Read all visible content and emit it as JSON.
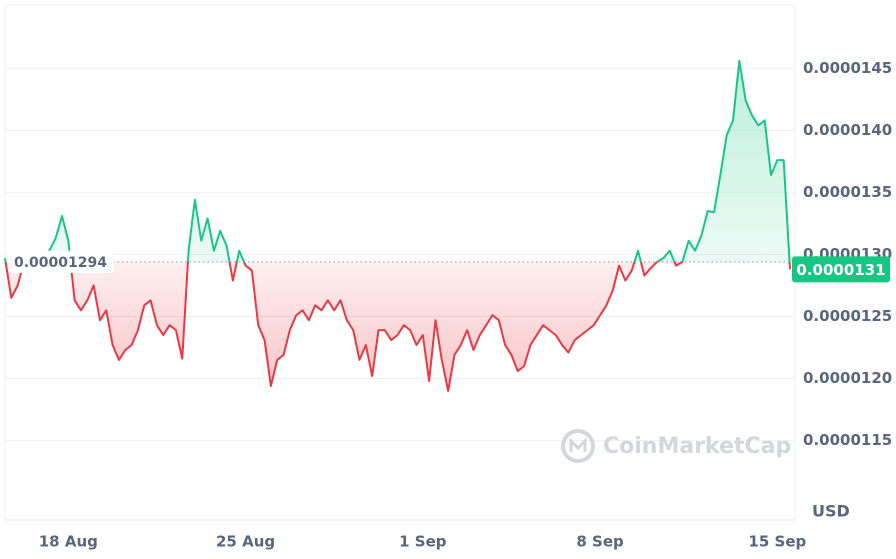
{
  "chart_data": {
    "type": "line",
    "categories": [
      null,
      null,
      null,
      null,
      null,
      null,
      null,
      null,
      null,
      null,
      "18 Aug",
      null,
      null,
      null,
      null,
      null,
      null,
      null,
      null,
      null,
      null,
      null,
      null,
      null,
      null,
      null,
      null,
      null,
      null,
      null,
      null,
      null,
      null,
      null,
      null,
      null,
      null,
      null,
      "25 Aug",
      null,
      null,
      null,
      null,
      null,
      null,
      null,
      null,
      null,
      null,
      null,
      null,
      null,
      null,
      null,
      null,
      null,
      null,
      null,
      null,
      null,
      null,
      null,
      null,
      null,
      null,
      null,
      "1 Sep",
      null,
      null,
      null,
      null,
      null,
      null,
      null,
      null,
      null,
      null,
      null,
      null,
      null,
      null,
      null,
      null,
      null,
      null,
      null,
      null,
      null,
      null,
      null,
      null,
      null,
      null,
      null,
      "8 Sep",
      null,
      null,
      null,
      null,
      null,
      null,
      null,
      null,
      null,
      null,
      null,
      null,
      null,
      null,
      null,
      null,
      null,
      null,
      null,
      null,
      null,
      null,
      null,
      null,
      null,
      null,
      null,
      "15 Sep",
      null,
      null
    ],
    "values": [
      1.297e-05,
      1.265e-05,
      1.275e-05,
      1.294e-05,
      1.294e-05,
      1.293e-05,
      1.294e-05,
      1.303e-05,
      1.313e-05,
      1.331e-05,
      1.311e-05,
      1.263e-05,
      1.255e-05,
      1.263e-05,
      1.275e-05,
      1.247e-05,
      1.255e-05,
      1.227e-05,
      1.215e-05,
      1.223e-05,
      1.227e-05,
      1.239e-05,
      1.259e-05,
      1.263e-05,
      1.243e-05,
      1.235e-05,
      1.243e-05,
      1.239e-05,
      1.216e-05,
      1.303e-05,
      1.344e-05,
      1.311e-05,
      1.329e-05,
      1.303e-05,
      1.319e-05,
      1.307e-05,
      1.279e-05,
      1.303e-05,
      1.291e-05,
      1.287e-05,
      1.243e-05,
      1.231e-05,
      1.194e-05,
      1.215e-05,
      1.219e-05,
      1.239e-05,
      1.251e-05,
      1.255e-05,
      1.247e-05,
      1.259e-05,
      1.255e-05,
      1.263e-05,
      1.255e-05,
      1.263e-05,
      1.247e-05,
      1.239e-05,
      1.215e-05,
      1.227e-05,
      1.202e-05,
      1.239e-05,
      1.239e-05,
      1.231e-05,
      1.235e-05,
      1.243e-05,
      1.239e-05,
      1.227e-05,
      1.235e-05,
      1.198e-05,
      1.247e-05,
      1.215e-05,
      1.19e-05,
      1.219e-05,
      1.227e-05,
      1.239e-05,
      1.223e-05,
      1.235e-05,
      1.243e-05,
      1.251e-05,
      1.247e-05,
      1.227e-05,
      1.219e-05,
      1.206e-05,
      1.21e-05,
      1.227e-05,
      1.235e-05,
      1.243e-05,
      1.239e-05,
      1.235e-05,
      1.227e-05,
      1.221e-05,
      1.231e-05,
      1.235e-05,
      1.239e-05,
      1.243e-05,
      1.251e-05,
      1.259e-05,
      1.271e-05,
      1.291e-05,
      1.279e-05,
      1.287e-05,
      1.303e-05,
      1.283e-05,
      1.289e-05,
      1.294e-05,
      1.297e-05,
      1.303e-05,
      1.291e-05,
      1.294e-05,
      1.311e-05,
      1.303e-05,
      1.315e-05,
      1.335e-05,
      1.334e-05,
      1.364e-05,
      1.396e-05,
      1.408e-05,
      1.456e-05,
      1.424e-05,
      1.412e-05,
      1.404e-05,
      1.408e-05,
      1.364e-05,
      1.376e-05,
      1.376e-05,
      1.288e-05
    ],
    "up_color": "#16c784",
    "down_color": "#ea3943",
    "baseline": 1.294e-05,
    "current_price": 1.31e-05,
    "ylim": [
      1.086e-05,
      1.501e-05
    ],
    "yticks": [
      1.15e-05,
      {
        "value": 1.2e-05,
        "label": "0.0000120"
      },
      1.25e-05,
      {
        "value": 1.3e-05,
        "label": "0.0000130"
      },
      1.35e-05,
      {
        "value": 1.4e-05,
        "label": "0.0000140"
      },
      1.45e-05
    ],
    "y_unit": "USD",
    "grid": true,
    "watermark": "CoinMarketCap"
  }
}
